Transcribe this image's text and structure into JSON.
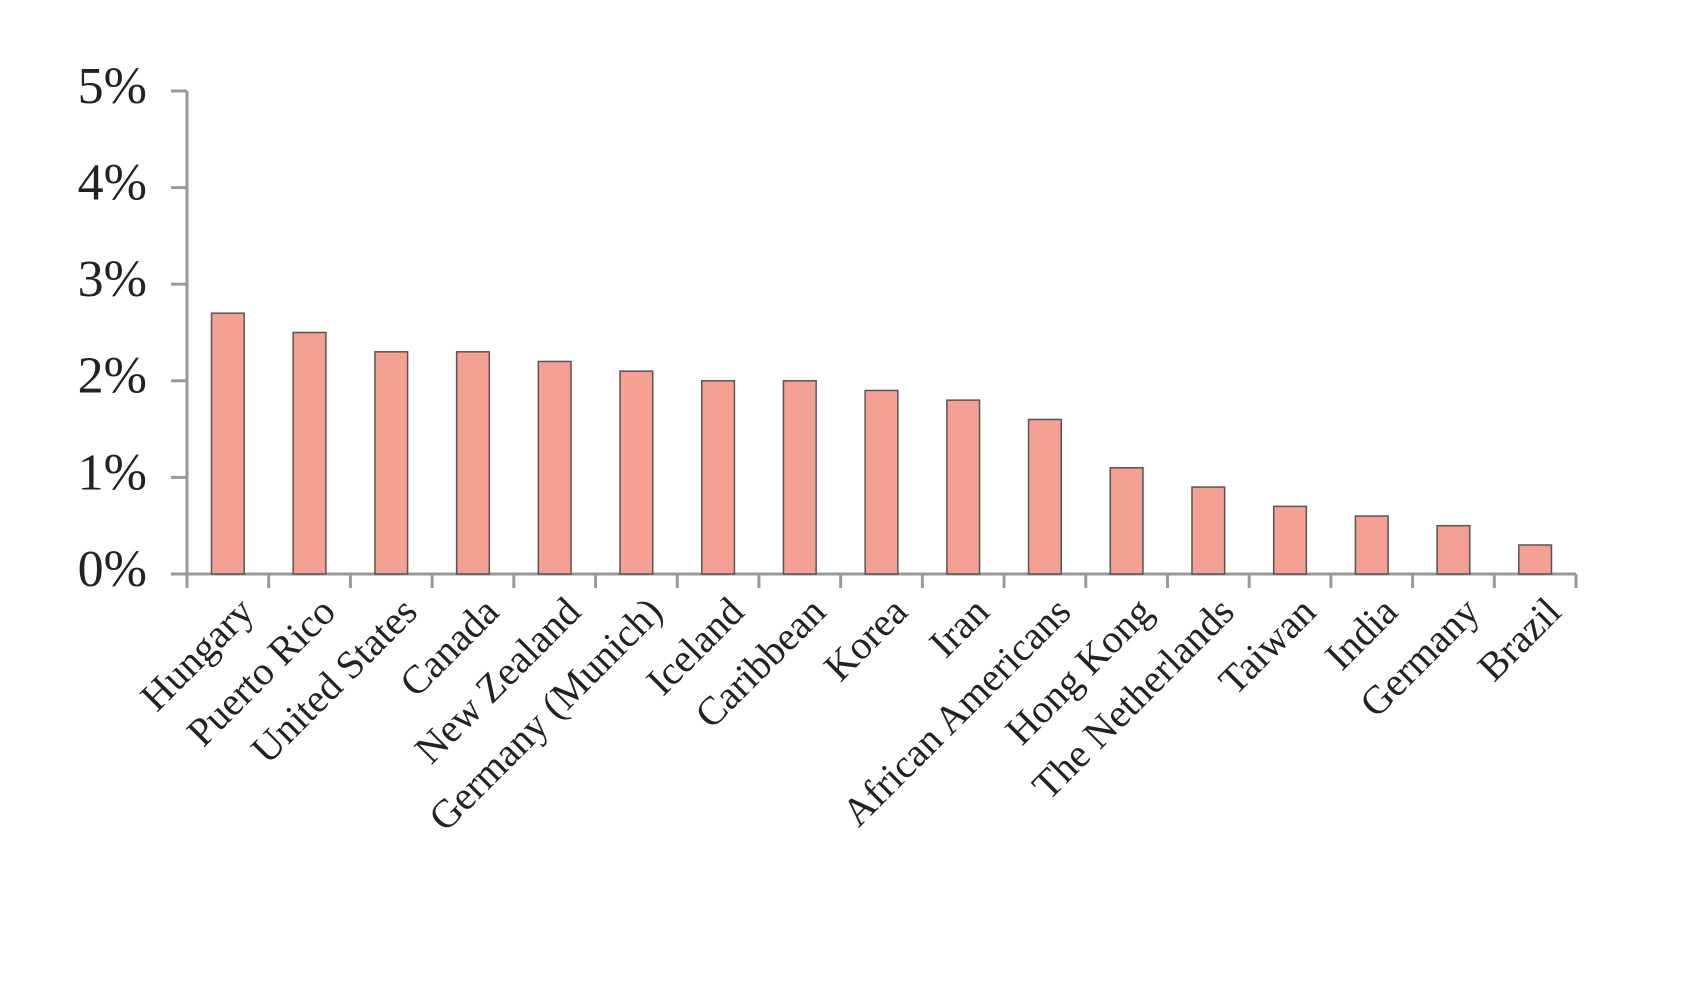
{
  "chart_data": {
    "type": "bar",
    "categories": [
      "Hungary",
      "Puerto Rico",
      "United States",
      "Canada",
      "New Zealand",
      "Germany (Munich)",
      "Iceland",
      "Caribbean",
      "Korea",
      "Iran",
      "African Americans",
      "Hong Kong",
      "The Netherlands",
      "Taiwan",
      "India",
      "Germany",
      "Brazil"
    ],
    "values": [
      2.7,
      2.5,
      2.3,
      2.3,
      2.2,
      2.1,
      2.0,
      2.0,
      1.9,
      1.8,
      1.6,
      1.1,
      0.9,
      0.7,
      0.6,
      0.5,
      0.3
    ],
    "color": "#f4a093",
    "ylim": [
      0,
      5
    ],
    "yticks": [
      {
        "value": 0,
        "label": "0%"
      },
      {
        "value": 1,
        "label": "1%"
      },
      {
        "value": 2,
        "label": "2%"
      },
      {
        "value": 3,
        "label": "3%"
      },
      {
        "value": 4,
        "label": "4%"
      },
      {
        "value": 5,
        "label": "5%"
      }
    ],
    "grid": false
  }
}
